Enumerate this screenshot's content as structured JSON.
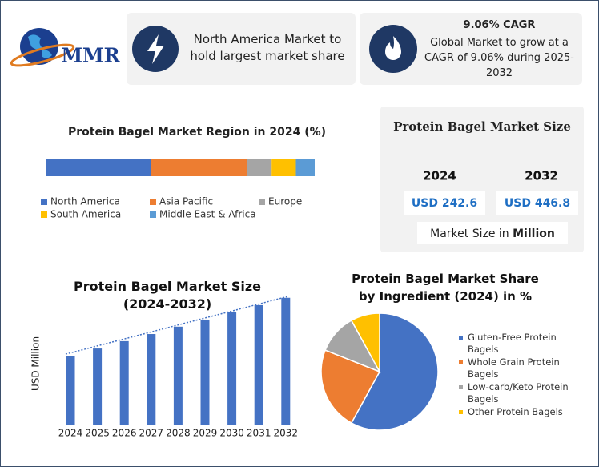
{
  "logo": "MMR",
  "cards": [
    {
      "text": "North America Market to hold largest market share"
    },
    {
      "title": "9.06% CAGR",
      "text": "Global Market to grow at a CAGR of 9.06% during 2025-2032"
    }
  ],
  "market_size": {
    "title": "Protein Bagel Market Size",
    "years": [
      "2024",
      "2032"
    ],
    "values": [
      "USD 242.6",
      "USD 446.8"
    ],
    "unit_prefix": "Market Size in",
    "unit": "Million"
  },
  "chart_data": [
    {
      "type": "stacked-bar",
      "title": "Protein Bagel Market Region in 2024 (%)",
      "series": [
        {
          "name": "North America",
          "color": "#4472c4",
          "values": [
            39
          ]
        },
        {
          "name": "Asia Pacific",
          "color": "#ed7d31",
          "values": [
            36
          ]
        },
        {
          "name": "Europe",
          "color": "#a5a5a5",
          "values": [
            9
          ]
        },
        {
          "name": "South America",
          "color": "#ffc000",
          "values": [
            9
          ]
        },
        {
          "name": "Middle East & Africa",
          "color": "#5b9bd5",
          "values": [
            7
          ]
        }
      ]
    },
    {
      "type": "bar",
      "title": "Protein Bagel Market Size (2024-2032)",
      "y_label": "USD Million",
      "categories": [
        "2024",
        "2025",
        "2026",
        "2027",
        "2028",
        "2029",
        "2030",
        "2031",
        "2032"
      ],
      "values": [
        242.6,
        268,
        294,
        319,
        345,
        370,
        396,
        421,
        446.8
      ],
      "color": "#4472c4",
      "ylim": [
        0,
        480
      ],
      "trend_line": true
    },
    {
      "type": "pie",
      "title": "Protein Bagel Market Share by Ingredient (2024) in %",
      "categories": [
        "Gluten-Free Protein Bagels",
        "Whole Grain Protein Bagels",
        "Low-carb/Keto Protein Bagels",
        "Other Protein Bagels"
      ],
      "values": [
        58,
        23,
        11,
        8
      ],
      "colors": [
        "#4472c4",
        "#ed7d31",
        "#a5a5a5",
        "#ffc000"
      ]
    }
  ]
}
